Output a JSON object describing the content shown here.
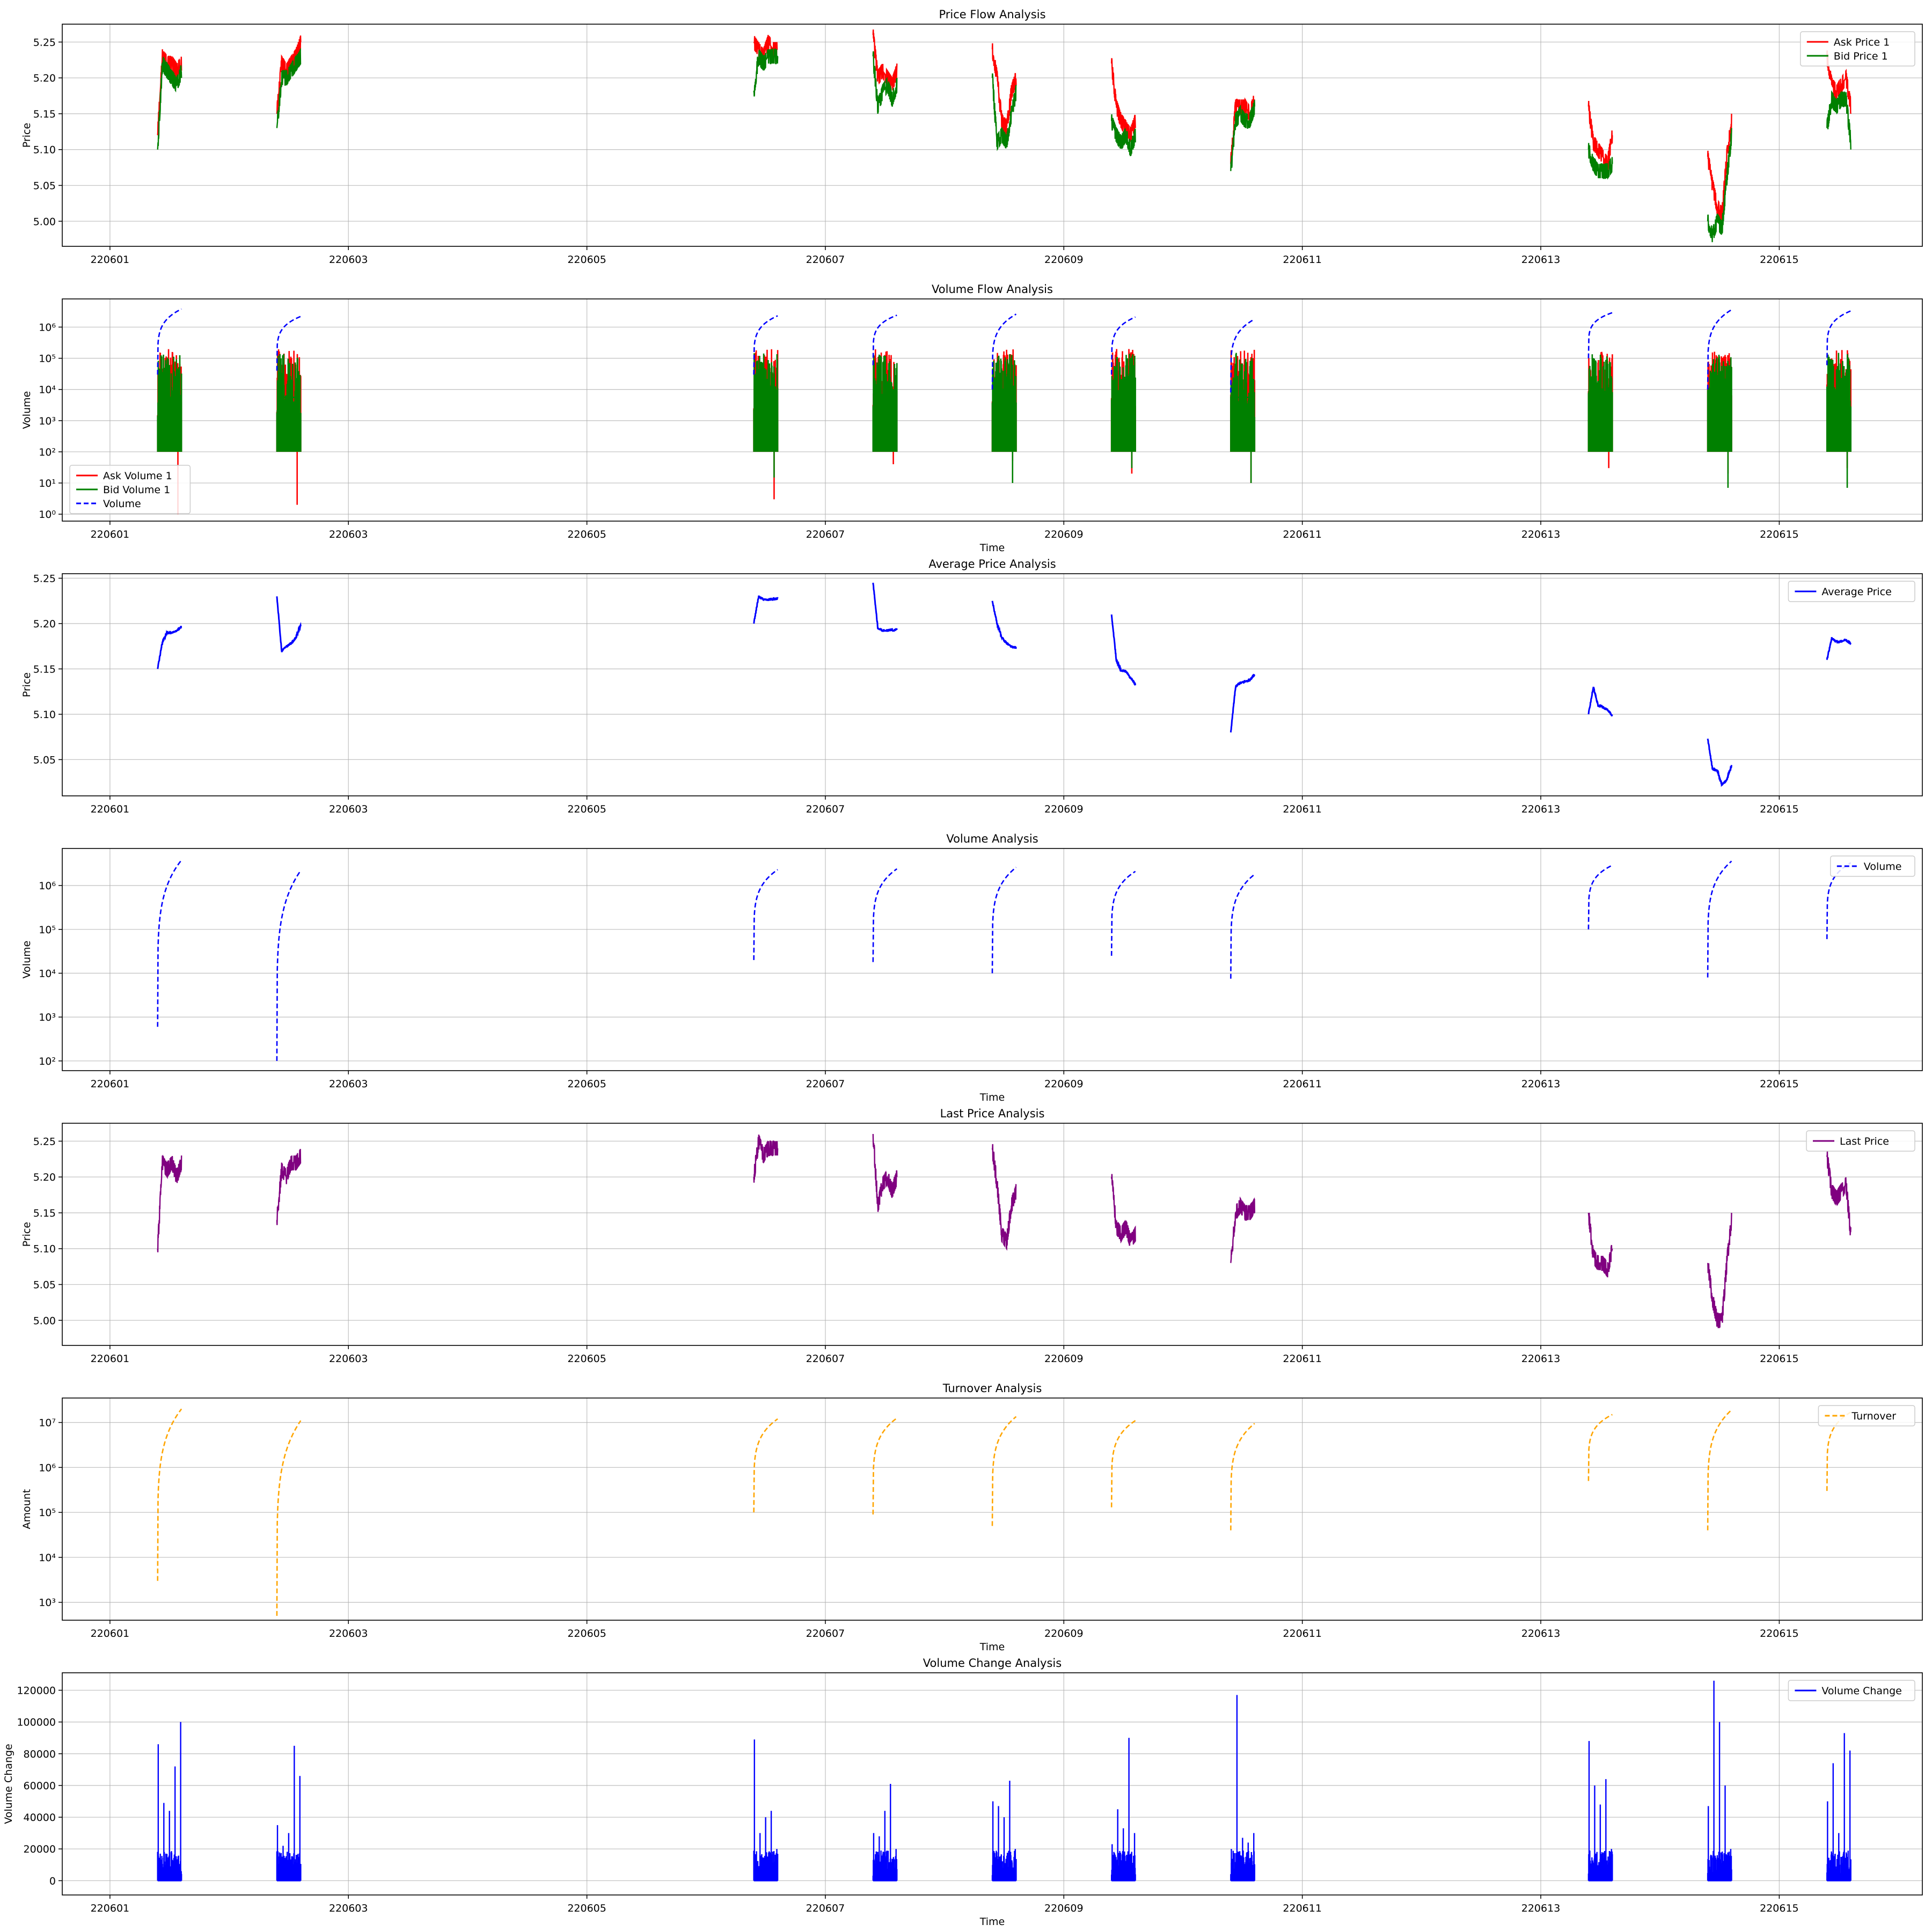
{
  "chart_data": [
    {
      "type": "line",
      "title": "Price Flow Analysis",
      "xlabel": "",
      "ylabel": "Price",
      "yscale": "linear",
      "ylim": [
        4.965,
        5.275
      ],
      "yticks": [
        5.0,
        5.05,
        5.1,
        5.15,
        5.2,
        5.25
      ],
      "ytick_labels": [
        "5.00",
        "5.05",
        "5.10",
        "5.15",
        "5.20",
        "5.25"
      ],
      "legend": {
        "position": "top-right",
        "entries": [
          "Ask Price 1",
          "Bid Price 1"
        ]
      },
      "series": [
        {
          "name": "Ask Price 1",
          "color": "#ff0000",
          "style": "solid",
          "kind": "price",
          "sessions": [
            [
              5.12,
              5.23,
              5.22,
              5.22,
              5.21,
              5.22
            ],
            [
              5.15,
              5.22,
              5.21,
              5.22,
              5.23,
              5.25
            ],
            [
              5.25,
              5.24,
              5.23,
              5.25,
              5.24,
              5.24
            ],
            [
              5.26,
              5.2,
              5.21,
              5.2,
              5.19,
              5.21
            ],
            [
              5.24,
              5.2,
              5.14,
              5.13,
              5.18,
              5.2
            ],
            [
              5.22,
              5.16,
              5.14,
              5.13,
              5.12,
              5.14
            ],
            [
              5.08,
              5.16,
              5.16,
              5.16,
              5.15,
              5.17
            ],
            [
              5.16,
              5.11,
              5.1,
              5.09,
              5.08,
              5.12
            ],
            [
              5.09,
              5.05,
              5.02,
              5.01,
              5.09,
              5.14
            ],
            [
              5.23,
              5.19,
              5.18,
              5.19,
              5.2,
              5.16
            ]
          ]
        },
        {
          "name": "Bid Price 1",
          "color": "#008000",
          "style": "solid",
          "kind": "price",
          "sessions": [
            [
              5.1,
              5.22,
              5.21,
              5.2,
              5.19,
              5.21
            ],
            [
              5.13,
              5.2,
              5.2,
              5.21,
              5.22,
              5.23
            ],
            [
              5.18,
              5.23,
              5.22,
              5.23,
              5.23,
              5.23
            ],
            [
              5.23,
              5.16,
              5.18,
              5.19,
              5.17,
              5.19
            ],
            [
              5.2,
              5.11,
              5.12,
              5.11,
              5.15,
              5.18
            ],
            [
              5.14,
              5.12,
              5.11,
              5.12,
              5.1,
              5.12
            ],
            [
              5.07,
              5.14,
              5.15,
              5.14,
              5.14,
              5.16
            ],
            [
              5.1,
              5.08,
              5.07,
              5.07,
              5.07,
              5.08
            ],
            [
              5.0,
              4.98,
              5.0,
              4.99,
              5.06,
              5.12
            ],
            [
              5.13,
              5.17,
              5.16,
              5.17,
              5.17,
              5.11
            ]
          ]
        }
      ]
    },
    {
      "type": "line",
      "title": "Volume Flow Analysis",
      "xlabel": "Time",
      "ylabel": "Volume",
      "yscale": "log",
      "ylim": [
        0.6,
        8000000
      ],
      "yticks": [
        1,
        10,
        100,
        1000,
        10000,
        100000,
        1000000
      ],
      "ytick_labels": [
        "10⁰",
        "10¹",
        "10²",
        "10³",
        "10⁴",
        "10⁵",
        "10⁶"
      ],
      "legend": {
        "position": "bottom-left",
        "entries": [
          "Ask Volume 1",
          "Bid Volume 1",
          "Volume"
        ]
      },
      "series": [
        {
          "name": "Ask Volume 1",
          "color": "#ff0000",
          "style": "solid",
          "kind": "spiky",
          "low": 100,
          "high": 200000,
          "dips": [
            1,
            2,
            3,
            40,
            50,
            20,
            10,
            30,
            20,
            30
          ]
        },
        {
          "name": "Bid Volume 1",
          "color": "#008000",
          "style": "solid",
          "kind": "spiky",
          "low": 100,
          "high": 150000,
          "dips": [
            100,
            100,
            15,
            100,
            10,
            30,
            10,
            100,
            7,
            7
          ]
        },
        {
          "name": "Volume",
          "color": "#0000ff",
          "style": "dashed",
          "kind": "cumulative",
          "start": [
            30000,
            40000,
            30000,
            60000,
            10000,
            30000,
            8000,
            100000,
            10000,
            60000
          ],
          "end": [
            3800000,
            2200000,
            2300000,
            2400000,
            2600000,
            2100000,
            1800000,
            2900000,
            3600000,
            3300000
          ]
        }
      ]
    },
    {
      "type": "line",
      "title": "Average Price Analysis",
      "xlabel": "",
      "ylabel": "Price",
      "yscale": "linear",
      "ylim": [
        5.01,
        5.255
      ],
      "yticks": [
        5.05,
        5.1,
        5.15,
        5.2,
        5.25
      ],
      "ytick_labels": [
        "5.05",
        "5.10",
        "5.15",
        "5.20",
        "5.25"
      ],
      "legend": {
        "position": "top-right",
        "entries": [
          "Average Price"
        ]
      },
      "series": [
        {
          "name": "Average Price",
          "color": "#0000ff",
          "style": "solid",
          "kind": "price",
          "sessions": [
            [
              5.15,
              5.18,
              5.19,
              5.19,
              5.192,
              5.197
            ],
            [
              5.23,
              5.17,
              5.175,
              5.178,
              5.185,
              5.198
            ],
            [
              5.2,
              5.23,
              5.227,
              5.226,
              5.227,
              5.228
            ],
            [
              5.245,
              5.195,
              5.192,
              5.192,
              5.193,
              5.193
            ],
            [
              5.225,
              5.2,
              5.185,
              5.178,
              5.175,
              5.173
            ],
            [
              5.21,
              5.16,
              5.148,
              5.147,
              5.14,
              5.133
            ],
            [
              5.08,
              5.13,
              5.135,
              5.136,
              5.138,
              5.144
            ],
            [
              5.1,
              5.13,
              5.11,
              5.108,
              5.105,
              5.098
            ],
            [
              5.073,
              5.04,
              5.038,
              5.022,
              5.028,
              5.043
            ],
            [
              5.16,
              5.184,
              5.18,
              5.18,
              5.182,
              5.178
            ]
          ]
        }
      ]
    },
    {
      "type": "line",
      "title": "Volume Analysis",
      "xlabel": "Time",
      "ylabel": "Volume",
      "yscale": "log",
      "ylim": [
        60,
        7000000
      ],
      "yticks": [
        100,
        1000,
        10000,
        100000,
        1000000
      ],
      "ytick_labels": [
        "10²",
        "10³",
        "10⁴",
        "10⁵",
        "10⁶"
      ],
      "legend": {
        "position": "top-right",
        "entries": [
          "Volume"
        ]
      },
      "series": [
        {
          "name": "Volume",
          "color": "#0000ff",
          "style": "dashed",
          "kind": "cumulative",
          "start": [
            600,
            100,
            20000,
            18000,
            10000,
            25000,
            7500,
            100000,
            8000,
            60000
          ],
          "end": [
            3800000,
            2200000,
            2300000,
            2400000,
            2600000,
            2100000,
            1800000,
            2900000,
            3600000,
            3300000
          ]
        }
      ]
    },
    {
      "type": "line",
      "title": "Last Price Analysis",
      "xlabel": "",
      "ylabel": "Price",
      "yscale": "linear",
      "ylim": [
        4.965,
        5.275
      ],
      "yticks": [
        5.0,
        5.05,
        5.1,
        5.15,
        5.2,
        5.25
      ],
      "ytick_labels": [
        "5.00",
        "5.05",
        "5.10",
        "5.15",
        "5.20",
        "5.25"
      ],
      "legend": {
        "position": "top-right",
        "entries": [
          "Last Price"
        ]
      },
      "series": [
        {
          "name": "Last Price",
          "color": "#800080",
          "style": "solid",
          "kind": "price",
          "sessions": [
            [
              5.1,
              5.22,
              5.21,
              5.22,
              5.2,
              5.22
            ],
            [
              5.14,
              5.21,
              5.2,
              5.22,
              5.22,
              5.23
            ],
            [
              5.2,
              5.25,
              5.23,
              5.24,
              5.24,
              5.24
            ],
            [
              5.26,
              5.16,
              5.19,
              5.2,
              5.18,
              5.2
            ],
            [
              5.24,
              5.19,
              5.12,
              5.11,
              5.16,
              5.18
            ],
            [
              5.2,
              5.13,
              5.12,
              5.13,
              5.11,
              5.12
            ],
            [
              5.08,
              5.15,
              5.16,
              5.15,
              5.15,
              5.16
            ],
            [
              5.15,
              5.09,
              5.08,
              5.08,
              5.07,
              5.1
            ],
            [
              5.08,
              5.03,
              5.0,
              5.0,
              5.08,
              5.14
            ],
            [
              5.23,
              5.18,
              5.17,
              5.18,
              5.19,
              5.12
            ]
          ]
        }
      ]
    },
    {
      "type": "line",
      "title": "Turnover Analysis",
      "xlabel": "Time",
      "ylabel": "Amount",
      "yscale": "log",
      "ylim": [
        400,
        35000000
      ],
      "yticks": [
        1000,
        10000,
        100000,
        1000000,
        10000000
      ],
      "ytick_labels": [
        "10³",
        "10⁴",
        "10⁵",
        "10⁶",
        "10⁷"
      ],
      "legend": {
        "position": "top-right",
        "entries": [
          "Turnover"
        ]
      },
      "series": [
        {
          "name": "Turnover",
          "color": "#ffa500",
          "style": "dashed",
          "kind": "cumulative",
          "start": [
            3000,
            500,
            100000,
            90000,
            50000,
            130000,
            40000,
            500000,
            40000,
            300000
          ],
          "end": [
            20000000,
            11000000,
            12000000,
            12500000,
            13500000,
            11000000,
            9500000,
            15000000,
            19000000,
            17000000
          ]
        }
      ]
    },
    {
      "type": "bar",
      "title": "Volume Change Analysis",
      "xlabel": "Time",
      "ylabel": "Volume Change",
      "yscale": "linear",
      "ylim": [
        -9000,
        131000
      ],
      "yticks": [
        0,
        20000,
        40000,
        60000,
        80000,
        100000,
        120000
      ],
      "ytick_labels": [
        "0",
        "20000",
        "40000",
        "60000",
        "80000",
        "100000",
        "120000"
      ],
      "legend": {
        "position": "top-right",
        "entries": [
          "Volume Change"
        ]
      },
      "series": [
        {
          "name": "Volume Change",
          "color": "#0000ff",
          "style": "solid",
          "kind": "spikes",
          "peaks": [
            [
              86000,
              49000,
              44000,
              72000,
              100000
            ],
            [
              35000,
              22000,
              30000,
              85000,
              66000
            ],
            [
              89000,
              30000,
              40000,
              44000,
              20000
            ],
            [
              30000,
              28000,
              44000,
              61000,
              20000
            ],
            [
              50000,
              47000,
              40000,
              63000,
              20000
            ],
            [
              23000,
              45000,
              33000,
              90000,
              30000
            ],
            [
              20000,
              117000,
              27000,
              24000,
              30000
            ],
            [
              88000,
              60000,
              48000,
              64000,
              20000
            ],
            [
              47000,
              126000,
              100000,
              60000,
              20000
            ],
            [
              50000,
              74000,
              30000,
              93000,
              82000
            ]
          ]
        }
      ]
    }
  ],
  "x_axis": {
    "ticks": [
      "220601",
      "220603",
      "220605",
      "220607",
      "220609",
      "220611",
      "220613",
      "220615"
    ],
    "session_days": [
      220601,
      220602,
      220606,
      220607,
      220608,
      220609,
      220610,
      220613,
      220614,
      220615
    ]
  }
}
